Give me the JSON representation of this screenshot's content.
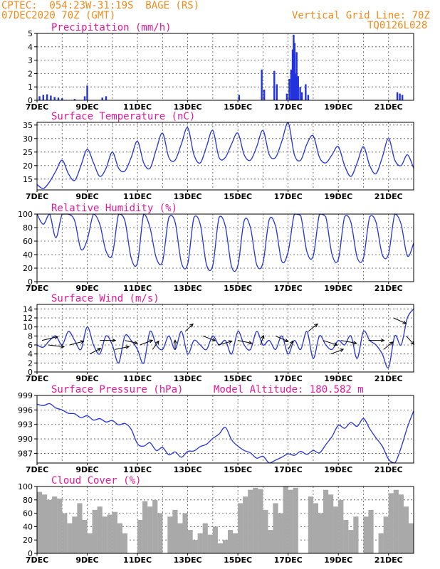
{
  "header": {
    "line1": "CPTEC:  054:23W-31:19S  BAGE (RS)",
    "line2": "07DEC2020 70Z (GMT)",
    "grid_note": "Vertical Grid Line: 70Z",
    "code": "TQ0126L028"
  },
  "colors": {
    "header": "#f08a1c",
    "title": "#e0199a",
    "series": "#2233dd",
    "cloud": "#a9a9a9",
    "arrow": "#000000"
  },
  "x_axis": {
    "start_day": 7,
    "end_day": 22,
    "labels": [
      {
        "day": 7,
        "label": "7DEC"
      },
      {
        "day": 9,
        "label": "9DEC"
      },
      {
        "day": 11,
        "label": "11DEC"
      },
      {
        "day": 13,
        "label": "13DEC"
      },
      {
        "day": 15,
        "label": "15DEC"
      },
      {
        "day": 17,
        "label": "17DEC"
      },
      {
        "day": 19,
        "label": "19DEC"
      },
      {
        "day": 21,
        "label": "21DEC"
      }
    ]
  },
  "chart_data": [
    {
      "id": "precip",
      "type": "bar",
      "title": "Precipitation (mm/h)",
      "ylim": [
        0,
        5
      ],
      "yticks": [
        0,
        1,
        2,
        3,
        4,
        5
      ],
      "x": [
        7.1,
        7.25,
        7.4,
        7.55,
        7.7,
        7.85,
        8.0,
        8.5,
        8.9,
        9.0,
        9.6,
        9.75,
        15.05,
        15.95,
        16.05,
        16.45,
        16.55,
        16.95,
        17.05,
        17.12,
        17.18,
        17.22,
        17.26,
        17.3,
        17.34,
        17.4,
        17.48,
        17.55,
        17.7,
        17.8,
        21.35,
        21.45,
        21.55
      ],
      "values": [
        0.3,
        0.4,
        0.45,
        0.35,
        0.25,
        0.2,
        0.15,
        0.1,
        0.3,
        1.1,
        0.2,
        0.3,
        0.4,
        2.3,
        0.8,
        2.2,
        1.2,
        0.5,
        1.6,
        2.3,
        3.8,
        4.9,
        4.3,
        2.0,
        3.6,
        1.8,
        1.0,
        0.6,
        1.2,
        0.4,
        0.6,
        0.5,
        0.4
      ]
    },
    {
      "id": "temp",
      "type": "line",
      "title": "Surface Temperature (nC)",
      "ylim": [
        11,
        36
      ],
      "yticks": [
        15,
        20,
        25,
        30,
        35
      ],
      "x": [
        7.0,
        7.25,
        7.5,
        7.75,
        8.0,
        8.25,
        8.5,
        8.75,
        9.0,
        9.25,
        9.5,
        9.75,
        10.0,
        10.25,
        10.5,
        10.75,
        11.0,
        11.25,
        11.5,
        11.75,
        12.0,
        12.25,
        12.5,
        12.75,
        13.0,
        13.25,
        13.5,
        13.75,
        14.0,
        14.25,
        14.5,
        14.75,
        15.0,
        15.25,
        15.5,
        15.75,
        16.0,
        16.25,
        16.5,
        16.75,
        17.0,
        17.25,
        17.5,
        17.75,
        18.0,
        18.25,
        18.5,
        18.75,
        19.0,
        19.25,
        19.5,
        19.75,
        20.0,
        20.25,
        20.5,
        20.75,
        21.0,
        21.25,
        21.5,
        21.75,
        22.0
      ],
      "values": [
        13,
        11.5,
        14,
        18,
        22,
        17,
        14.5,
        20,
        26,
        21,
        16,
        19,
        25,
        19,
        18,
        23,
        29,
        21,
        19,
        26,
        32,
        23,
        22,
        28,
        34,
        24,
        21,
        27,
        33,
        23,
        23,
        28,
        32,
        24,
        22,
        27,
        33,
        24,
        23,
        29,
        36,
        24,
        22,
        28,
        31,
        23,
        21,
        24,
        27,
        20,
        16,
        21,
        27,
        20,
        17,
        23,
        30,
        22,
        20,
        24,
        19
      ]
    },
    {
      "id": "rh",
      "type": "line",
      "title": "Relative Humidity (%)",
      "ylim": [
        0,
        100
      ],
      "yticks": [
        0,
        20,
        40,
        60,
        80,
        100
      ],
      "x": [
        7.0,
        7.25,
        7.5,
        7.75,
        8.0,
        8.25,
        8.5,
        8.75,
        9.0,
        9.25,
        9.5,
        9.75,
        10.0,
        10.25,
        10.5,
        10.75,
        11.0,
        11.25,
        11.5,
        11.75,
        12.0,
        12.25,
        12.5,
        12.75,
        13.0,
        13.25,
        13.5,
        13.75,
        14.0,
        14.25,
        14.5,
        14.75,
        15.0,
        15.25,
        15.5,
        15.75,
        16.0,
        16.25,
        16.5,
        16.75,
        17.0,
        17.25,
        17.5,
        17.75,
        18.0,
        18.25,
        18.5,
        18.75,
        19.0,
        19.25,
        19.5,
        19.75,
        20.0,
        20.25,
        20.5,
        20.75,
        21.0,
        21.25,
        21.5,
        21.75,
        22.0
      ],
      "values": [
        100,
        85,
        100,
        65,
        100,
        100,
        90,
        48,
        62,
        100,
        85,
        45,
        40,
        100,
        90,
        35,
        28,
        100,
        80,
        35,
        30,
        95,
        88,
        28,
        26,
        95,
        85,
        25,
        24,
        95,
        82,
        22,
        24,
        90,
        80,
        25,
        28,
        92,
        82,
        30,
        44,
        100,
        98,
        44,
        38,
        100,
        96,
        40,
        33,
        96,
        88,
        36,
        35,
        96,
        88,
        40,
        41,
        100,
        85,
        38,
        57
      ]
    },
    {
      "id": "wind",
      "type": "line",
      "title": "Surface Wind (m/s)",
      "ylim": [
        0,
        15
      ],
      "yticks": [
        0,
        2,
        4,
        6,
        8,
        10,
        12,
        14
      ],
      "x": [
        7.0,
        7.25,
        7.5,
        7.75,
        8.0,
        8.25,
        8.5,
        8.75,
        9.0,
        9.25,
        9.5,
        9.75,
        10.0,
        10.25,
        10.5,
        10.75,
        11.0,
        11.25,
        11.5,
        11.75,
        12.0,
        12.25,
        12.5,
        12.75,
        13.0,
        13.25,
        13.5,
        13.75,
        14.0,
        14.25,
        14.5,
        14.75,
        15.0,
        15.25,
        15.5,
        15.75,
        16.0,
        16.25,
        16.5,
        16.75,
        17.0,
        17.25,
        17.5,
        17.75,
        18.0,
        18.25,
        18.5,
        18.75,
        19.0,
        19.25,
        19.5,
        19.75,
        20.0,
        20.25,
        20.5,
        20.75,
        21.0,
        21.25,
        21.5,
        21.75,
        22.0
      ],
      "values": [
        6,
        5.5,
        7,
        8,
        6,
        9,
        7,
        5,
        10,
        6,
        4,
        8,
        6,
        2,
        8,
        7,
        5,
        2,
        9,
        6,
        5,
        8,
        5,
        9,
        4,
        7,
        6,
        5,
        8,
        6,
        7,
        4,
        9,
        6,
        5,
        9,
        6,
        7,
        5,
        8,
        4,
        7,
        5,
        9,
        3,
        8,
        6,
        5,
        7,
        6,
        8,
        3,
        9,
        7,
        6,
        4,
        1,
        8,
        6,
        12,
        14
      ],
      "arrows": [
        {
          "day": 7.2,
          "speed": 7,
          "dx": 1,
          "dy": -0.4
        },
        {
          "day": 7.45,
          "speed": 6,
          "dx": 1,
          "dy": 0.2
        },
        {
          "day": 8.3,
          "speed": 6,
          "dx": 0.9,
          "dy": -0.4
        },
        {
          "day": 9.1,
          "speed": 4,
          "dx": 0.7,
          "dy": -0.6
        },
        {
          "day": 9.5,
          "speed": 7,
          "dx": 1,
          "dy": 0
        },
        {
          "day": 10.1,
          "speed": 5,
          "dx": 0.9,
          "dy": -0.3
        },
        {
          "day": 10.5,
          "speed": 7,
          "dx": 0.8,
          "dy": 0.3
        },
        {
          "day": 11.1,
          "speed": 6,
          "dx": 0.8,
          "dy": -0.5
        },
        {
          "day": 11.6,
          "speed": 5,
          "dx": 0.4,
          "dy": -0.9
        },
        {
          "day": 12.5,
          "speed": 5,
          "dx": 0,
          "dy": -1
        },
        {
          "day": 12.9,
          "speed": 9,
          "dx": 0.5,
          "dy": -0.8
        },
        {
          "day": 13.6,
          "speed": 8,
          "dx": 0.8,
          "dy": 0.5
        },
        {
          "day": 14.2,
          "speed": 6,
          "dx": 0.9,
          "dy": -0.4
        },
        {
          "day": 15.0,
          "speed": 7,
          "dx": 0.9,
          "dy": 0.3
        },
        {
          "day": 15.9,
          "speed": 6,
          "dx": 0.2,
          "dy": -1
        },
        {
          "day": 16.5,
          "speed": 8,
          "dx": 0.8,
          "dy": 0.6
        },
        {
          "day": 17.0,
          "speed": 5,
          "dx": 0.3,
          "dy": -0.9
        },
        {
          "day": 17.8,
          "speed": 9,
          "dx": 0.6,
          "dy": -0.8
        },
        {
          "day": 18.4,
          "speed": 7,
          "dx": 0.9,
          "dy": 0.5
        },
        {
          "day": 18.7,
          "speed": 4,
          "dx": 0.8,
          "dy": -0.5
        },
        {
          "day": 19.1,
          "speed": 7,
          "dx": 1,
          "dy": 0.3
        },
        {
          "day": 20.2,
          "speed": 7,
          "dx": 1,
          "dy": 0
        },
        {
          "day": 20.8,
          "speed": 5,
          "dx": 0.6,
          "dy": -0.8
        },
        {
          "day": 21.2,
          "speed": 12,
          "dx": 0.8,
          "dy": 0.6
        },
        {
          "day": 21.7,
          "speed": 8,
          "dx": 0.5,
          "dy": 0.9
        }
      ]
    },
    {
      "id": "pressure",
      "type": "line",
      "title": "Surface Pressure (hPa)",
      "altitude_label": "Model Altitude: 180.582 m",
      "ylim": [
        985,
        999
      ],
      "yticks": [
        987,
        990,
        993,
        996,
        999
      ],
      "x": [
        7.0,
        7.25,
        7.5,
        7.75,
        8.0,
        8.25,
        8.5,
        8.75,
        9.0,
        9.25,
        9.5,
        9.75,
        10.0,
        10.25,
        10.5,
        10.75,
        11.0,
        11.25,
        11.5,
        11.75,
        12.0,
        12.25,
        12.5,
        12.75,
        13.0,
        13.25,
        13.5,
        13.75,
        14.0,
        14.25,
        14.5,
        14.75,
        15.0,
        15.25,
        15.5,
        15.75,
        16.0,
        16.25,
        16.5,
        16.75,
        17.0,
        17.25,
        17.5,
        17.75,
        18.0,
        18.25,
        18.5,
        18.75,
        19.0,
        19.25,
        19.5,
        19.75,
        20.0,
        20.25,
        20.5,
        20.75,
        21.0,
        21.25,
        21.5,
        21.75,
        22.0
      ],
      "values": [
        997.2,
        996.9,
        997.3,
        996.4,
        996.0,
        995.3,
        995.2,
        994.4,
        994.8,
        993.9,
        994.2,
        993.5,
        993.8,
        992.9,
        993.2,
        992.0,
        989.0,
        988.5,
        989.2,
        987.6,
        988.2,
        986.7,
        987.3,
        986.2,
        987.4,
        987.5,
        988.4,
        988.9,
        990.1,
        991.0,
        992.4,
        989.8,
        988.5,
        987.6,
        987.1,
        986.0,
        986.4,
        985.0,
        985.6,
        986.2,
        986.9,
        986.6,
        987.4,
        986.8,
        987.6,
        987.1,
        988.8,
        990.5,
        992.8,
        992.2,
        993.4,
        992.6,
        994.2,
        992.1,
        990.2,
        988.5,
        985.8,
        985.0,
        988.2,
        992.4,
        995.8
      ]
    },
    {
      "id": "cloud",
      "type": "area",
      "title": "Cloud Cover (%)",
      "ylim": [
        0,
        100
      ],
      "yticks": [
        0,
        20,
        40,
        60,
        80,
        100
      ],
      "x": [
        7.1,
        7.3,
        7.5,
        7.7,
        7.9,
        8.1,
        8.3,
        8.5,
        8.7,
        8.9,
        9.1,
        9.3,
        9.5,
        9.7,
        9.9,
        10.1,
        10.3,
        10.5,
        10.7,
        10.9,
        11.1,
        11.3,
        11.5,
        11.7,
        11.9,
        12.1,
        12.3,
        12.5,
        12.7,
        12.9,
        13.1,
        13.3,
        13.5,
        13.7,
        13.9,
        14.1,
        14.3,
        14.5,
        14.7,
        14.9,
        15.1,
        15.3,
        15.5,
        15.7,
        15.9,
        16.1,
        16.3,
        16.5,
        16.7,
        16.9,
        17.1,
        17.3,
        17.5,
        17.7,
        17.9,
        18.1,
        18.3,
        18.5,
        18.7,
        18.9,
        19.1,
        19.3,
        19.5,
        19.7,
        19.9,
        20.1,
        20.3,
        20.5,
        20.7,
        20.9,
        21.1,
        21.3,
        21.5,
        21.7,
        21.9
      ],
      "values": [
        92,
        88,
        80,
        85,
        82,
        60,
        45,
        55,
        75,
        50,
        30,
        65,
        70,
        55,
        58,
        62,
        45,
        30,
        0,
        0,
        50,
        78,
        70,
        80,
        60,
        0,
        55,
        65,
        45,
        60,
        35,
        20,
        30,
        45,
        28,
        40,
        15,
        20,
        35,
        30,
        75,
        85,
        95,
        98,
        96,
        65,
        35,
        75,
        60,
        100,
        95,
        98,
        0,
        0,
        85,
        75,
        60,
        95,
        88,
        70,
        80,
        50,
        35,
        55,
        0,
        55,
        65,
        0,
        30,
        55,
        90,
        95,
        88,
        70,
        45
      ]
    }
  ]
}
